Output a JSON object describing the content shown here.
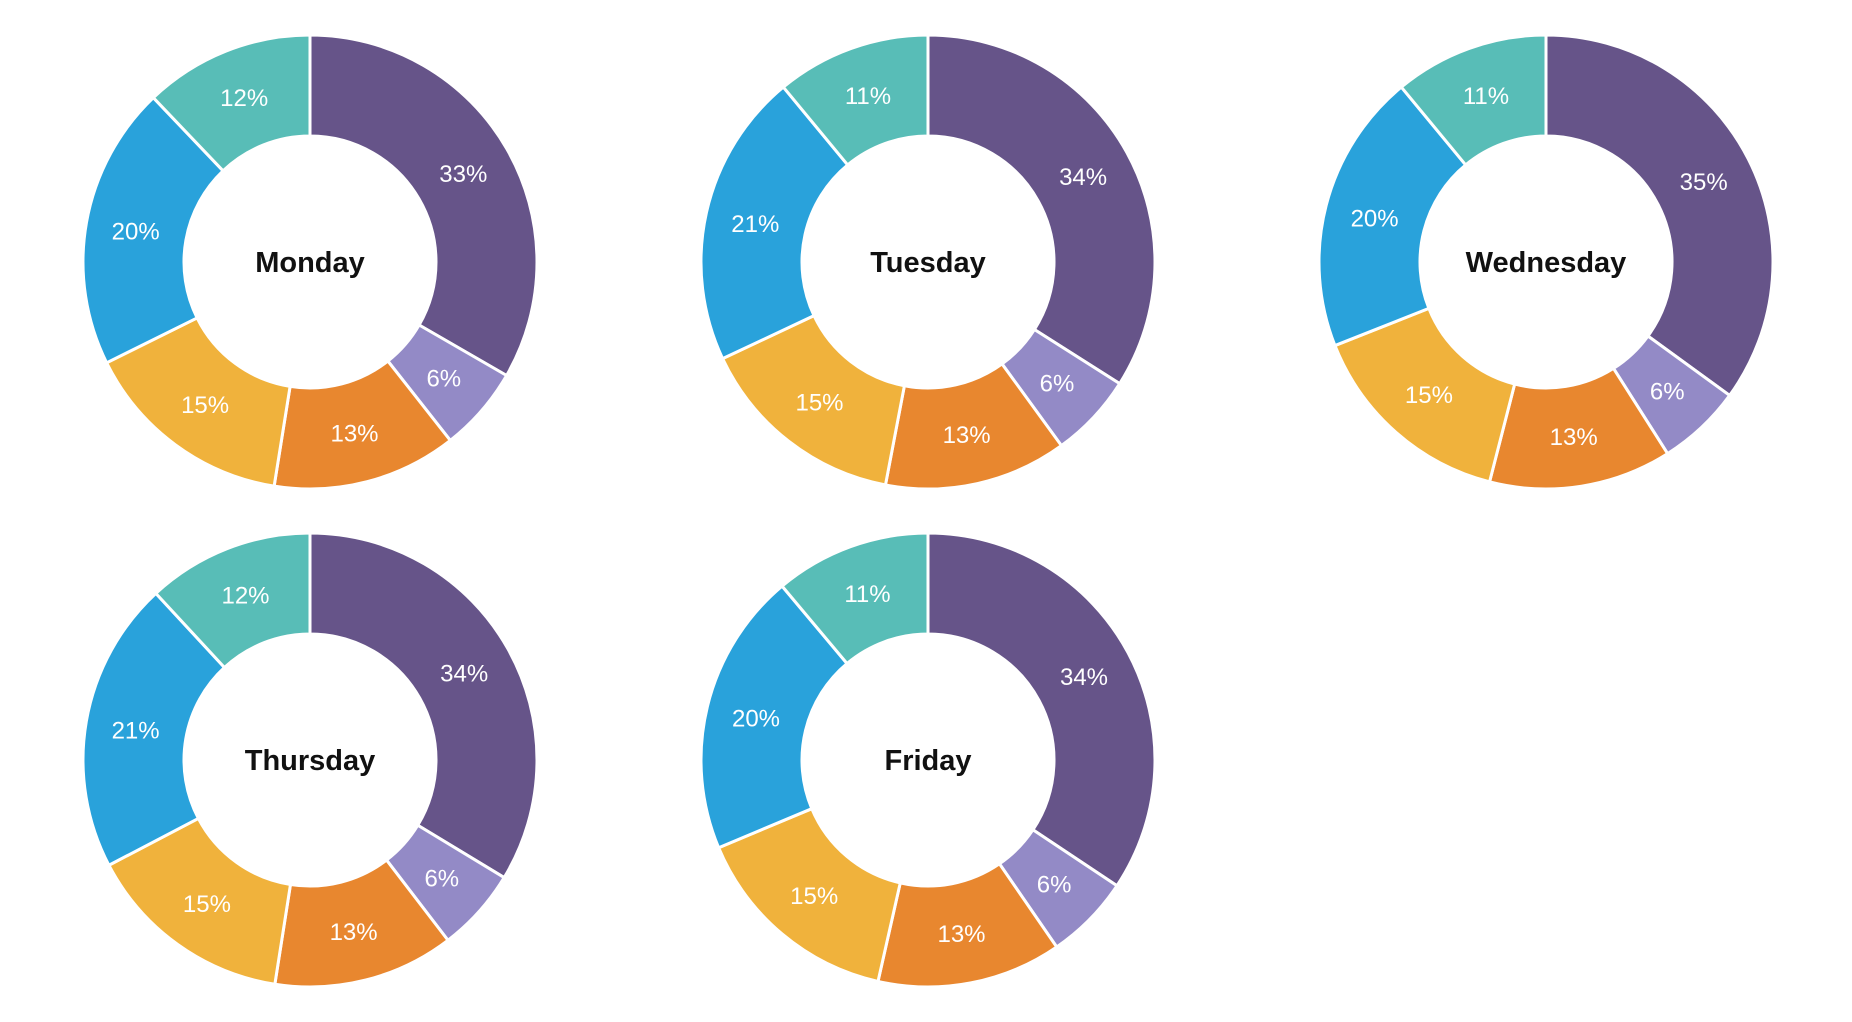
{
  "palette": {
    "purple": "#665489",
    "light_purple": "#938AC6",
    "orange": "#E8872F",
    "amber": "#F0B23C",
    "blue": "#29A2DB",
    "teal": "#58BDB7"
  },
  "text_colors": {
    "percent_label": "#ffffff",
    "day_title": "#111111"
  },
  "chart_data": [
    {
      "type": "pie",
      "variant": "donut",
      "title": "Monday",
      "start_angle_deg": 0,
      "direction": "clockwise",
      "legend": "none",
      "segments": [
        {
          "label": "33%",
          "value": 33,
          "color_key": "purple"
        },
        {
          "label": "6%",
          "value": 6,
          "color_key": "light_purple"
        },
        {
          "label": "13%",
          "value": 13,
          "color_key": "orange"
        },
        {
          "label": "15%",
          "value": 15,
          "color_key": "amber"
        },
        {
          "label": "20%",
          "value": 20,
          "color_key": "blue"
        },
        {
          "label": "12%",
          "value": 12,
          "color_key": "teal"
        }
      ]
    },
    {
      "type": "pie",
      "variant": "donut",
      "title": "Tuesday",
      "start_angle_deg": 0,
      "direction": "clockwise",
      "legend": "none",
      "segments": [
        {
          "label": "34%",
          "value": 34,
          "color_key": "purple"
        },
        {
          "label": "6%",
          "value": 6,
          "color_key": "light_purple"
        },
        {
          "label": "13%",
          "value": 13,
          "color_key": "orange"
        },
        {
          "label": "15%",
          "value": 15,
          "color_key": "amber"
        },
        {
          "label": "21%",
          "value": 21,
          "color_key": "blue"
        },
        {
          "label": "11%",
          "value": 11,
          "color_key": "teal"
        }
      ]
    },
    {
      "type": "pie",
      "variant": "donut",
      "title": "Wednesday",
      "start_angle_deg": 0,
      "direction": "clockwise",
      "legend": "none",
      "segments": [
        {
          "label": "35%",
          "value": 35,
          "color_key": "purple"
        },
        {
          "label": "6%",
          "value": 6,
          "color_key": "light_purple"
        },
        {
          "label": "13%",
          "value": 13,
          "color_key": "orange"
        },
        {
          "label": "15%",
          "value": 15,
          "color_key": "amber"
        },
        {
          "label": "20%",
          "value": 20,
          "color_key": "blue"
        },
        {
          "label": "11%",
          "value": 11,
          "color_key": "teal"
        }
      ]
    },
    {
      "type": "pie",
      "variant": "donut",
      "title": "Thursday",
      "start_angle_deg": 0,
      "direction": "clockwise",
      "legend": "none",
      "segments": [
        {
          "label": "34%",
          "value": 34,
          "color_key": "purple"
        },
        {
          "label": "6%",
          "value": 6,
          "color_key": "light_purple"
        },
        {
          "label": "13%",
          "value": 13,
          "color_key": "orange"
        },
        {
          "label": "15%",
          "value": 15,
          "color_key": "amber"
        },
        {
          "label": "21%",
          "value": 21,
          "color_key": "blue"
        },
        {
          "label": "12%",
          "value": 12,
          "color_key": "teal"
        }
      ]
    },
    {
      "type": "pie",
      "variant": "donut",
      "title": "Friday",
      "start_angle_deg": 0,
      "direction": "clockwise",
      "legend": "none",
      "segments": [
        {
          "label": "34%",
          "value": 34,
          "color_key": "purple"
        },
        {
          "label": "6%",
          "value": 6,
          "color_key": "light_purple"
        },
        {
          "label": "13%",
          "value": 13,
          "color_key": "orange"
        },
        {
          "label": "15%",
          "value": 15,
          "color_key": "amber"
        },
        {
          "label": "20%",
          "value": 20,
          "color_key": "blue"
        },
        {
          "label": "11%",
          "value": 11,
          "color_key": "teal"
        }
      ]
    }
  ]
}
